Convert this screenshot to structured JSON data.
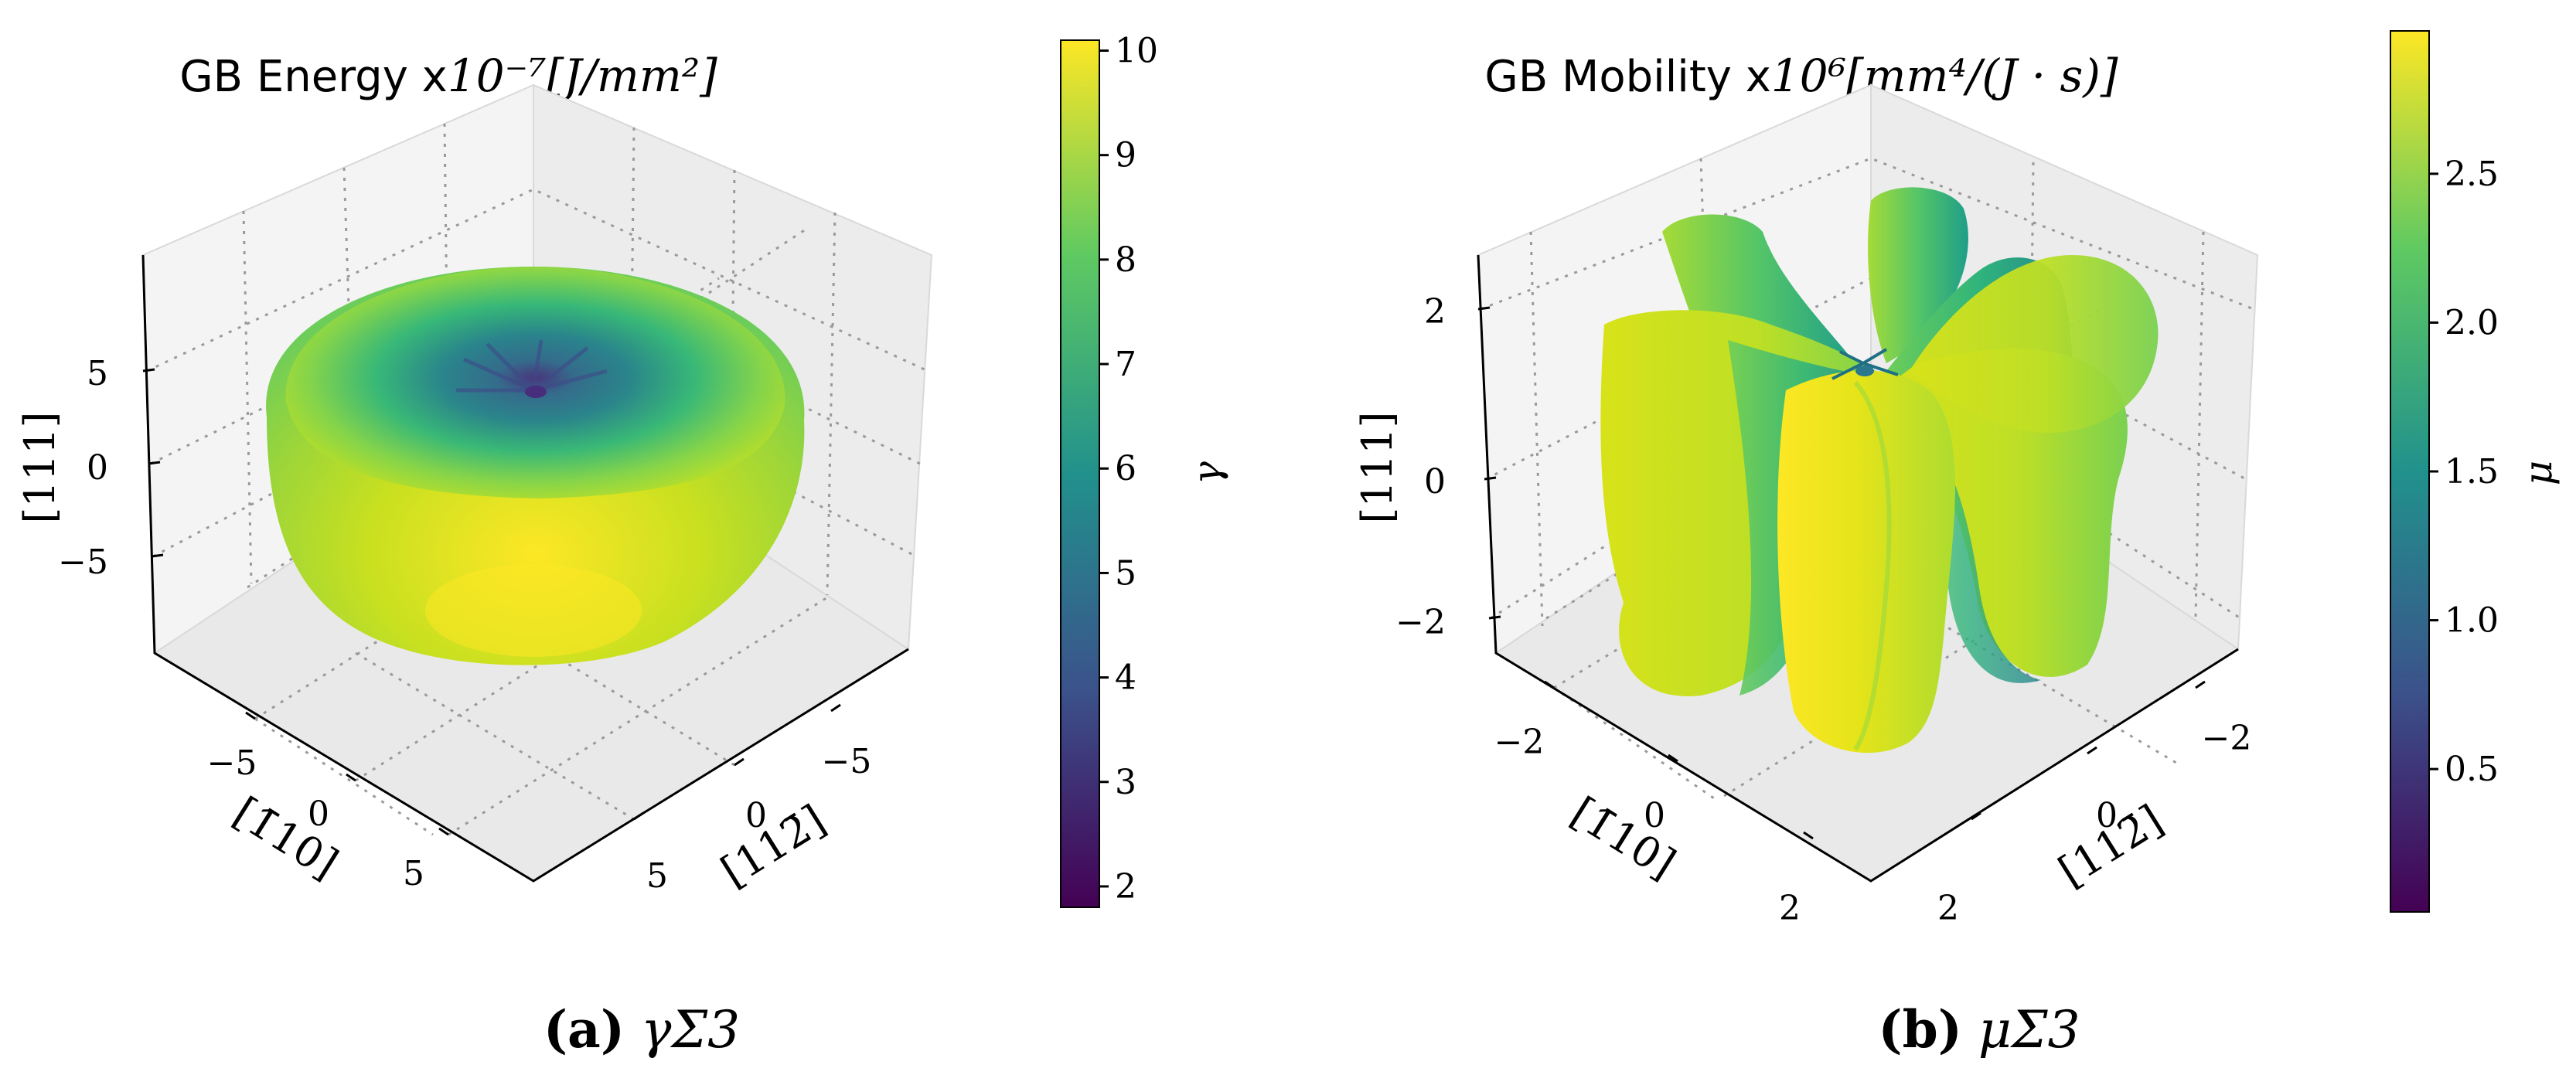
{
  "colors": {
    "viridis": [
      "#440154",
      "#3b528b",
      "#21918c",
      "#5ec962",
      "#fde725"
    ],
    "pane": "#f2f2f2",
    "grid": "#9a9a9a"
  },
  "panels": [
    {
      "id": "energy",
      "title_text": "GB Energy x",
      "title_math": "10⁻⁷[J/mm²]",
      "caption_letter": "(a)",
      "caption_symbol": "γΣ3",
      "axis_labels": {
        "x": "[1̄10]",
        "y": "[112̄]",
        "z": "[111]"
      },
      "ticks": {
        "x": [
          "−5",
          "0",
          "5"
        ],
        "y": [
          "−5",
          "0",
          "5"
        ],
        "z": [
          "5",
          "0",
          "−5"
        ]
      },
      "colorbar": {
        "label": "γ",
        "min": 1.8,
        "max": 10.1,
        "ticks": [
          "2",
          "3",
          "4",
          "5",
          "6",
          "7",
          "8",
          "9",
          "10"
        ],
        "tick_values": [
          2,
          3,
          4,
          5,
          6,
          7,
          8,
          9,
          10
        ]
      }
    },
    {
      "id": "mobility",
      "title_text": "GB Mobility x",
      "title_math": "10⁶[mm⁴/(J · s)]",
      "caption_letter": "(b)",
      "caption_symbol": "μΣ3",
      "axis_labels": {
        "x": "[1̄10]",
        "y": "[112̄]",
        "z": "[111]"
      },
      "ticks": {
        "x": [
          "−2",
          "0",
          "2"
        ],
        "y": [
          "−2",
          "0",
          "2"
        ],
        "z": [
          "2",
          "0",
          "−2"
        ]
      },
      "colorbar": {
        "label": "μ",
        "min": 0.02,
        "max": 2.98,
        "ticks": [
          "0.5",
          "1.0",
          "1.5",
          "2.0",
          "2.5"
        ],
        "tick_values": [
          0.5,
          1.0,
          1.5,
          2.0,
          2.5
        ]
      }
    }
  ],
  "chart_data": [
    {
      "type": "surface3d",
      "title": "GB Energy x10⁻⁷[J/mm²]",
      "quantity": "γ",
      "shape": "oblate toroid-like surface with a dimple at the top center (minimum near the [111] pole)",
      "xlabel": "[1̄10]",
      "ylabel": "[112̄]",
      "zlabel": "[111]",
      "xlim": [
        -9,
        9
      ],
      "ylim": [
        -9,
        9
      ],
      "zlim": [
        -9,
        9
      ],
      "xticks": [
        -5,
        0,
        5
      ],
      "yticks": [
        -5,
        0,
        5
      ],
      "zticks": [
        -5,
        0,
        5
      ],
      "color_range": [
        1.8,
        10.1
      ],
      "colorbar_ticks": [
        2,
        3,
        4,
        5,
        6,
        7,
        8,
        9,
        10
      ],
      "colormap": "viridis"
    },
    {
      "type": "surface3d",
      "title": "GB Mobility x10⁶[mm⁴/(J · s)]",
      "quantity": "μ",
      "shape": "six vertical lobes arranged around the [111] axis, pinched at the center",
      "xlabel": "[1̄10]",
      "ylabel": "[112̄]",
      "zlabel": "[111]",
      "xlim": [
        -3,
        3
      ],
      "ylim": [
        -3,
        3
      ],
      "zlim": [
        -3,
        3
      ],
      "xticks": [
        -2,
        0,
        2
      ],
      "yticks": [
        -2,
        0,
        2
      ],
      "zticks": [
        -2,
        0,
        2
      ],
      "color_range": [
        0.02,
        2.98
      ],
      "colorbar_ticks": [
        0.5,
        1.0,
        1.5,
        2.0,
        2.5
      ],
      "colormap": "viridis"
    }
  ]
}
